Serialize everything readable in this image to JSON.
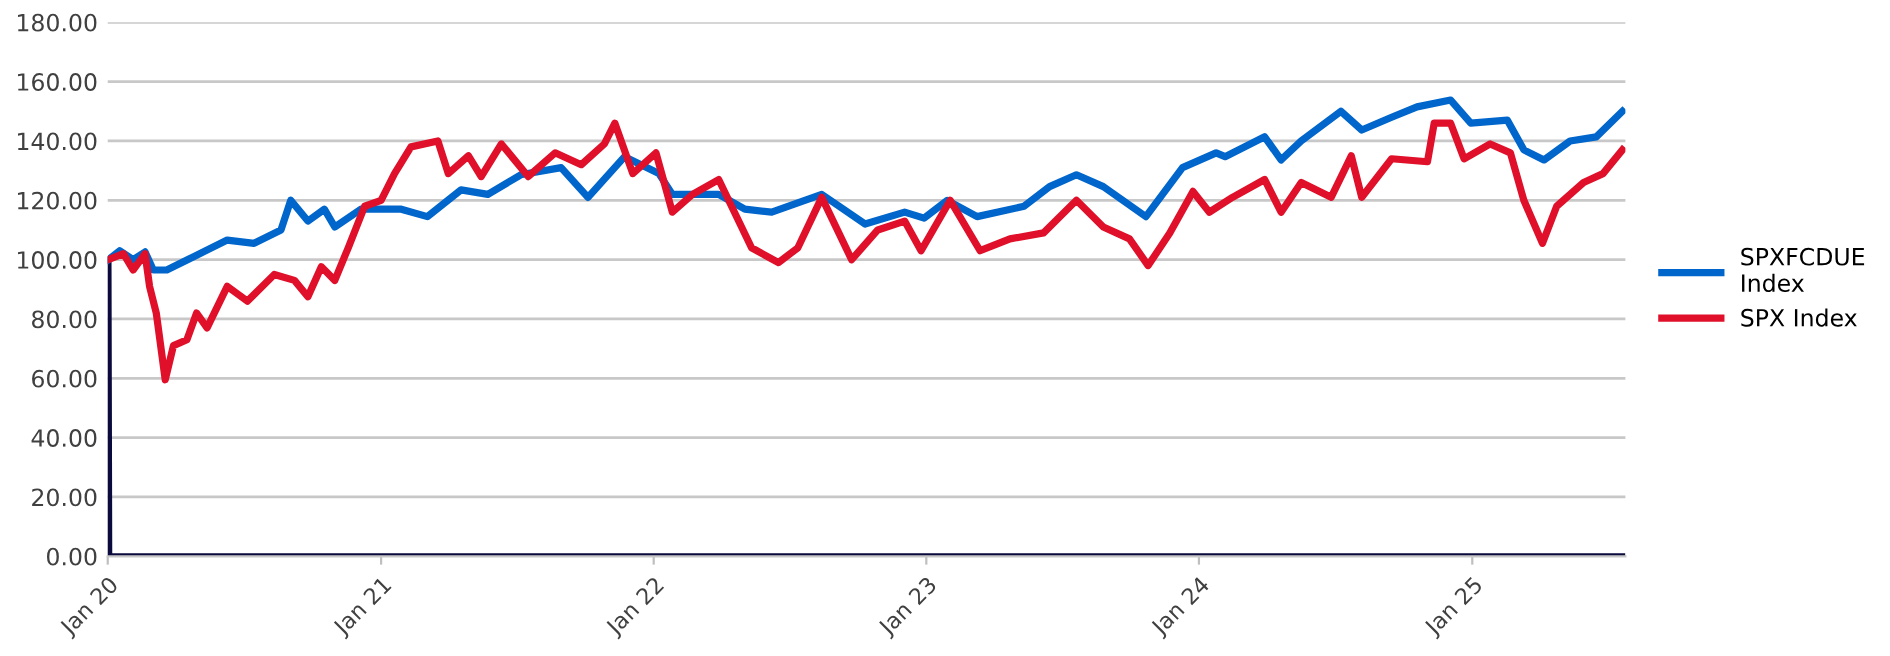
{
  "chart_data": {
    "type": "line",
    "legend": "right",
    "grid": "y",
    "line_style": "solid",
    "marker": "none",
    "xlim": [
      "2020-01-01",
      "2025-07-25"
    ],
    "xticks": [
      {
        "value": "2020-01-01",
        "label": "Jan 20"
      },
      {
        "value": "2021-01-01",
        "label": "Jan 21"
      },
      {
        "value": "2022-01-01",
        "label": "Jan 22"
      },
      {
        "value": "2023-01-01",
        "label": "Jan 23"
      },
      {
        "value": "2024-01-01",
        "label": "Jan 24"
      },
      {
        "value": "2025-01-01",
        "label": "Jan 25"
      }
    ],
    "ylim": [
      0,
      180
    ],
    "yticks": [
      {
        "value": 0,
        "label": "0.00"
      },
      {
        "value": 20,
        "label": "20.00"
      },
      {
        "value": 40,
        "label": "40.00"
      },
      {
        "value": 60,
        "label": "60.00"
      },
      {
        "value": 80,
        "label": "80.00"
      },
      {
        "value": 100,
        "label": "100.00"
      },
      {
        "value": 120,
        "label": "120.00"
      },
      {
        "value": 140,
        "label": "140.00"
      },
      {
        "value": 160,
        "label": "160.00"
      },
      {
        "value": 180,
        "label": "180.00"
      }
    ],
    "series": [
      {
        "name": "SPXFCDUE Index",
        "color": "#0066cc",
        "x": [
          "2020-01-02",
          "2020-01-17",
          "2020-02-04",
          "2020-02-20",
          "2020-03-02",
          "2020-03-20",
          "2020-04-25",
          "2020-06-09",
          "2020-07-15",
          "2020-08-20",
          "2020-09-02",
          "2020-09-25",
          "2020-10-17",
          "2020-10-31",
          "2020-12-05",
          "2021-01-28",
          "2021-03-04",
          "2021-04-18",
          "2021-05-24",
          "2021-07-07",
          "2021-08-30",
          "2021-10-05",
          "2021-11-23",
          "2022-01-08",
          "2022-01-26",
          "2022-03-29",
          "2022-05-03",
          "2022-06-08",
          "2022-08-14",
          "2022-10-11",
          "2022-12-03",
          "2022-12-29",
          "2023-01-29",
          "2023-03-10",
          "2023-05-12",
          "2023-06-15",
          "2023-07-21",
          "2023-08-26",
          "2023-10-22",
          "2023-12-10",
          "2024-01-24",
          "2024-02-05",
          "2024-03-29",
          "2024-04-20",
          "2024-05-17",
          "2024-07-09",
          "2024-08-06",
          "2024-09-15",
          "2024-10-19",
          "2024-12-03",
          "2024-12-30",
          "2025-02-17",
          "2025-03-11",
          "2025-04-07",
          "2025-05-12",
          "2025-06-16",
          "2025-07-21"
        ],
        "values": [
          100,
          103,
          100,
          102.6,
          96.5,
          96.5,
          101,
          106.6,
          105.5,
          110,
          120,
          113,
          117,
          111,
          117,
          117,
          114.5,
          123.5,
          122,
          128.6,
          131,
          121,
          134.7,
          129,
          122,
          122,
          117,
          116,
          122,
          112,
          116,
          114,
          120,
          114.5,
          118,
          124.6,
          128.6,
          124.6,
          114.5,
          131,
          136,
          134.7,
          141.4,
          133.6,
          140,
          150,
          143.7,
          148,
          151.5,
          153.8,
          146,
          147,
          137,
          133.6,
          140,
          141.4,
          150
        ]
      },
      {
        "name": "SPX Index",
        "color": "#e0102a",
        "x": [
          "2020-01-02",
          "2020-01-22",
          "2020-02-04",
          "2020-02-20",
          "2020-02-26",
          "2020-03-06",
          "2020-03-18",
          "2020-03-29",
          "2020-04-16",
          "2020-04-29",
          "2020-05-13",
          "2020-06-09",
          "2020-07-06",
          "2020-08-11",
          "2020-09-07",
          "2020-09-25",
          "2020-10-13",
          "2020-10-31",
          "2020-11-18",
          "2020-12-10",
          "2021-01-01",
          "2021-01-19",
          "2021-02-10",
          "2021-03-18",
          "2021-04-01",
          "2021-04-28",
          "2021-05-15",
          "2021-06-11",
          "2021-07-17",
          "2021-08-22",
          "2021-09-26",
          "2021-10-27",
          "2021-11-10",
          "2021-12-04",
          "2022-01-04",
          "2022-01-26",
          "2022-02-22",
          "2022-03-29",
          "2022-05-12",
          "2022-06-17",
          "2022-07-13",
          "2022-08-14",
          "2022-09-23",
          "2022-10-28",
          "2022-12-03",
          "2022-12-25",
          "2023-02-02",
          "2023-03-14",
          "2023-04-23",
          "2023-06-07",
          "2023-07-21",
          "2023-08-26",
          "2023-09-30",
          "2023-10-25",
          "2023-11-23",
          "2023-12-24",
          "2024-01-15",
          "2024-02-15",
          "2024-03-29",
          "2024-04-20",
          "2024-05-17",
          "2024-06-26",
          "2024-07-23",
          "2024-08-06",
          "2024-09-15",
          "2024-11-02",
          "2024-11-11",
          "2024-12-03",
          "2024-12-21",
          "2025-01-25",
          "2025-02-21",
          "2025-03-11",
          "2025-04-05",
          "2025-04-24",
          "2025-05-30",
          "2025-06-25",
          "2025-07-21"
        ],
        "values": [
          100,
          102,
          96.5,
          102,
          91,
          82,
          59.5,
          71,
          73,
          82,
          77,
          91,
          86,
          95,
          93,
          87.5,
          97.6,
          93,
          104,
          118,
          120,
          129,
          138,
          140,
          129,
          135,
          128,
          139,
          128,
          136,
          132,
          139,
          146,
          129,
          136,
          116,
          122,
          127,
          104,
          99,
          104,
          121,
          100,
          110,
          113,
          103,
          120,
          103,
          107,
          109,
          120,
          111,
          107,
          98,
          109,
          123,
          116,
          121,
          127,
          116,
          126,
          121,
          135,
          121,
          134,
          133,
          146,
          146,
          134,
          139,
          136,
          120,
          105.5,
          118,
          126,
          129,
          137
        ]
      },
      {
        "color": "#0a0a3c",
        "x": [
          "2020-01-02",
          "2020-01-03",
          "2025-07-21"
        ],
        "values": [
          100,
          0,
          0
        ]
      }
    ]
  }
}
